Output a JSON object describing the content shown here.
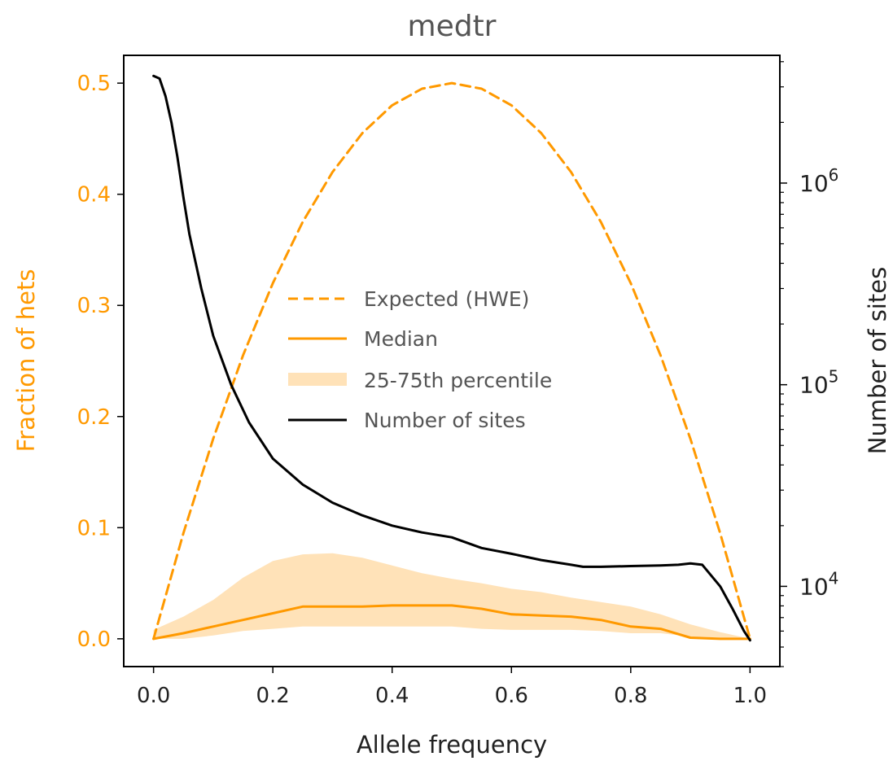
{
  "colors": {
    "expected": "#ff9900",
    "median": "#ff9900",
    "band": "#ffe2b8",
    "sites": "#000000",
    "left_axis_text": "#ff9900",
    "title_text": "#555555"
  },
  "chart_data": {
    "type": "line",
    "title": "medtr",
    "xlabel": "Allele frequency",
    "ylabel_left": "Fraction of hets",
    "ylabel_right": "Number of sites",
    "xlim": [
      -0.05,
      1.05
    ],
    "ylim_left": [
      -0.025,
      0.525
    ],
    "ylim_right": [
      4000,
      4300000
    ],
    "right_axis_scale": "log",
    "x_ticks": [
      "0.0",
      "0.2",
      "0.4",
      "0.6",
      "0.8",
      "1.0"
    ],
    "y_left_ticks": [
      "0.0",
      "0.1",
      "0.2",
      "0.3",
      "0.4",
      "0.5"
    ],
    "y_right_ticks": [
      {
        "value": 10000,
        "base": "10",
        "exp": "4"
      },
      {
        "value": 100000,
        "base": "10",
        "exp": "5"
      },
      {
        "value": 1000000,
        "base": "10",
        "exp": "6"
      }
    ],
    "legend": {
      "placement": "center",
      "entries": [
        "Expected (HWE)",
        "Median",
        "25-75th percentile",
        "Number of sites"
      ]
    },
    "series": [
      {
        "name": "Expected (HWE)",
        "axis": "left",
        "style": "dashed",
        "x": [
          0.0,
          0.05,
          0.1,
          0.15,
          0.2,
          0.25,
          0.3,
          0.35,
          0.4,
          0.45,
          0.5,
          0.55,
          0.6,
          0.65,
          0.7,
          0.75,
          0.8,
          0.85,
          0.9,
          0.95,
          1.0
        ],
        "y": [
          0.0,
          0.095,
          0.18,
          0.255,
          0.32,
          0.375,
          0.42,
          0.455,
          0.48,
          0.495,
          0.5,
          0.495,
          0.48,
          0.455,
          0.42,
          0.375,
          0.32,
          0.255,
          0.18,
          0.095,
          0.0
        ]
      },
      {
        "name": "Median",
        "axis": "left",
        "style": "solid",
        "x": [
          0.0,
          0.05,
          0.1,
          0.15,
          0.2,
          0.25,
          0.3,
          0.35,
          0.4,
          0.45,
          0.5,
          0.55,
          0.6,
          0.65,
          0.7,
          0.75,
          0.8,
          0.85,
          0.9,
          0.95,
          1.0
        ],
        "y": [
          0.0,
          0.005,
          0.011,
          0.017,
          0.023,
          0.029,
          0.029,
          0.029,
          0.03,
          0.03,
          0.03,
          0.027,
          0.022,
          0.021,
          0.02,
          0.017,
          0.011,
          0.009,
          0.001,
          0.0,
          0.0
        ]
      },
      {
        "name": "25-75th percentile",
        "axis": "left",
        "style": "band",
        "x": [
          0.0,
          0.05,
          0.1,
          0.15,
          0.2,
          0.25,
          0.3,
          0.35,
          0.4,
          0.45,
          0.5,
          0.55,
          0.6,
          0.65,
          0.7,
          0.75,
          0.8,
          0.85,
          0.9,
          0.95,
          1.0
        ],
        "lower": [
          0.0,
          0.0,
          0.003,
          0.007,
          0.009,
          0.011,
          0.011,
          0.011,
          0.011,
          0.011,
          0.011,
          0.009,
          0.008,
          0.008,
          0.008,
          0.007,
          0.005,
          0.005,
          0.002,
          0.001,
          0.0
        ],
        "upper": [
          0.008,
          0.02,
          0.035,
          0.055,
          0.07,
          0.076,
          0.077,
          0.073,
          0.066,
          0.059,
          0.054,
          0.05,
          0.045,
          0.042,
          0.037,
          0.033,
          0.029,
          0.022,
          0.013,
          0.006,
          0.0
        ]
      },
      {
        "name": "Number of sites",
        "axis": "right",
        "style": "solid",
        "x": [
          0.0,
          0.01,
          0.02,
          0.03,
          0.04,
          0.05,
          0.06,
          0.08,
          0.1,
          0.13,
          0.16,
          0.2,
          0.25,
          0.3,
          0.35,
          0.4,
          0.45,
          0.5,
          0.55,
          0.6,
          0.65,
          0.7,
          0.72,
          0.75,
          0.8,
          0.85,
          0.88,
          0.9,
          0.92,
          0.95,
          0.97,
          0.99,
          1.0
        ],
        "y": [
          3400000,
          3300000,
          2700000,
          2000000,
          1350000,
          850000,
          560000,
          300000,
          175000,
          100000,
          65000,
          43000,
          32000,
          26000,
          22500,
          20000,
          18500,
          17500,
          15500,
          14500,
          13500,
          12800,
          12500,
          12500,
          12600,
          12700,
          12800,
          13000,
          12800,
          10000,
          7800,
          6000,
          5400
        ]
      }
    ]
  }
}
